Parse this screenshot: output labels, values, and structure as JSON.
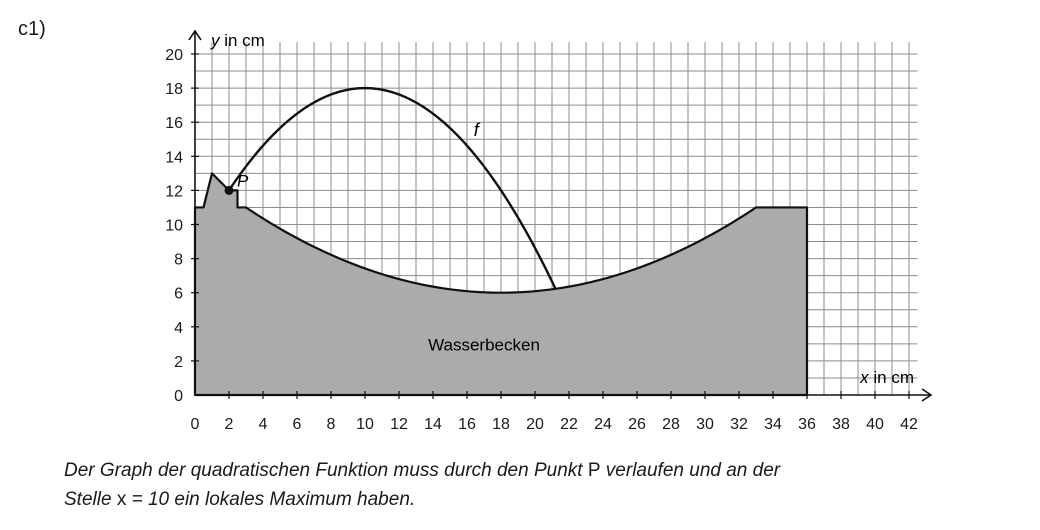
{
  "task_label": "c1)",
  "caption": {
    "line1_a": "Der Graph der quadratischen Funktion muss durch den Punkt ",
    "line1_b": "P",
    "line1_c": " verlaufen und an der",
    "line2_a": "Stelle ",
    "line2_b": "x",
    "line2_c": " = 10 ein lokales Maximum haben."
  },
  "chart_data": {
    "type": "line",
    "xlabel_var": "x",
    "xlabel_unit": " in cm",
    "ylabel_var": "y",
    "ylabel_unit": " in cm",
    "xlim": [
      0,
      43
    ],
    "ylim": [
      0,
      21
    ],
    "x_ticks": [
      0,
      2,
      4,
      6,
      8,
      10,
      12,
      14,
      16,
      18,
      20,
      22,
      24,
      26,
      28,
      30,
      32,
      34,
      36,
      38,
      40,
      42
    ],
    "y_ticks": [
      0,
      2,
      4,
      6,
      8,
      10,
      12,
      14,
      16,
      18,
      20
    ],
    "grid": true,
    "function_label": "f",
    "function_f": {
      "vertex": [
        10,
        18
      ],
      "passes_through": [
        2,
        12
      ],
      "x_end": 21.2
    },
    "point_P": {
      "label": "P",
      "x": 2,
      "y": 12
    },
    "basin": {
      "label": "Wasserbecken",
      "outline": [
        [
          0,
          0
        ],
        [
          0,
          11
        ],
        [
          0.5,
          11
        ],
        [
          1,
          13
        ],
        [
          2,
          12
        ],
        [
          2.5,
          12
        ],
        [
          2.5,
          11
        ],
        [
          3,
          11
        ],
        [
          18,
          6
        ],
        [
          33,
          11
        ],
        [
          36,
          11
        ],
        [
          36,
          0
        ]
      ]
    },
    "colors": {
      "fill": "#ababab",
      "grid": "#8c8c8c",
      "line": "#111111"
    }
  }
}
